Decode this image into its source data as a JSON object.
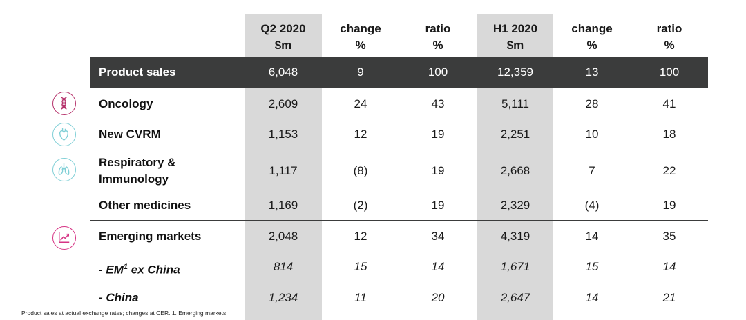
{
  "headers": {
    "q2": [
      "Q2 2020",
      "$m"
    ],
    "change1": [
      "change",
      "%"
    ],
    "ratio1": [
      "ratio",
      "%"
    ],
    "h1": [
      "H1 2020",
      "$m"
    ],
    "change2": [
      "change",
      "%"
    ],
    "ratio2": [
      "ratio",
      "%"
    ]
  },
  "rows": [
    {
      "label": "Product sales",
      "values": [
        "6,048",
        "9",
        "100",
        "12,359",
        "13",
        "100"
      ]
    },
    {
      "label": "Oncology",
      "values": [
        "2,609",
        "24",
        "43",
        "5,111",
        "28",
        "41"
      ]
    },
    {
      "label": "New CVRM",
      "values": [
        "1,153",
        "12",
        "19",
        "2,251",
        "10",
        "18"
      ]
    },
    {
      "label_line1": "Respiratory &",
      "label_line2": "Immunology",
      "values": [
        "1,117",
        "(8)",
        "19",
        "2,668",
        "7",
        "22"
      ]
    },
    {
      "label": "Other medicines",
      "values": [
        "1,169",
        "(2)",
        "19",
        "2,329",
        "(4)",
        "19"
      ]
    },
    {
      "label": "Emerging markets",
      "values": [
        "2,048",
        "12",
        "34",
        "4,319",
        "14",
        "35"
      ]
    },
    {
      "label_pre": "- EM",
      "label_sup": "1",
      "label_post": " ex China",
      "values": [
        "814",
        "15",
        "14",
        "1,671",
        "15",
        "14"
      ]
    },
    {
      "label": "- China",
      "values": [
        "1,234",
        "11",
        "20",
        "2,647",
        "14",
        "21"
      ]
    }
  ],
  "icons": [
    {
      "name": "dna-icon",
      "color": "#b5326b"
    },
    {
      "name": "heart-icon",
      "color": "#7fcfd6"
    },
    {
      "name": "lungs-icon",
      "color": "#7fcfd6"
    },
    {
      "name": "growth-chart-icon",
      "color": "#d63384"
    }
  ],
  "colors": {
    "header_band": "#d9d9d9",
    "total_bar": "#3b3c3c"
  },
  "footnote": "Product sales at actual exchange rates; changes at CER.  1. Emerging markets."
}
